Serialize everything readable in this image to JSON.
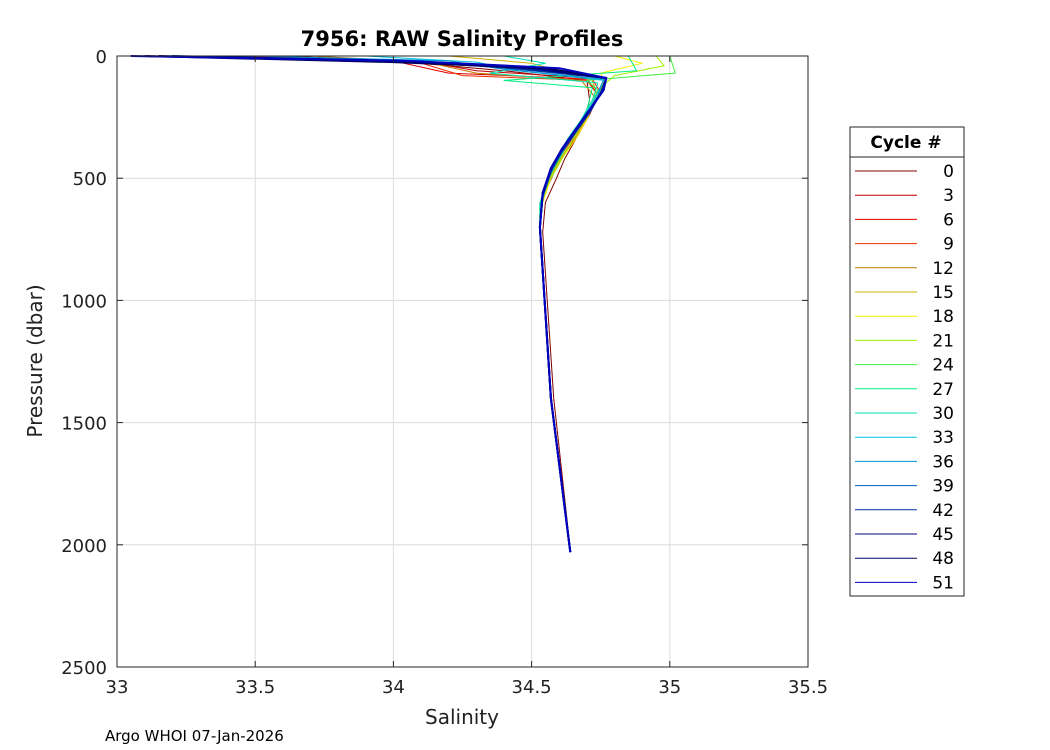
{
  "chart_data": {
    "type": "line",
    "title": "7956: RAW Salinity Profiles",
    "xlabel": "Salinity",
    "ylabel": "Pressure (dbar)",
    "xlim": [
      33,
      35.5
    ],
    "ylim": [
      0,
      2500
    ],
    "y_reversed": true,
    "xticks": [
      33,
      33.5,
      34,
      34.5,
      35,
      35.5
    ],
    "xtick_labels": [
      "33",
      "33.5",
      "34",
      "34.5",
      "35",
      "35.5"
    ],
    "yticks": [
      0,
      500,
      1000,
      1500,
      2000,
      2500
    ],
    "ytick_labels": [
      "0",
      "500",
      "1000",
      "1500",
      "2000",
      "2500"
    ],
    "grid": true,
    "legend_title": "Cycle #",
    "legend_position": "right",
    "series": [
      {
        "name": "0",
        "color": "#800000",
        "salinity": [
          33.62,
          34.05,
          34.4,
          34.7,
          34.71,
          34.69,
          34.66,
          34.62,
          34.59,
          34.55,
          34.54,
          34.58,
          34.64
        ],
        "pressure": [
          0,
          25,
          60,
          100,
          180,
          260,
          340,
          420,
          500,
          600,
          720,
          1400,
          2020
        ]
      },
      {
        "name": "3",
        "color": "#c00000",
        "salinity": [
          33.4,
          34.1,
          34.3,
          34.7,
          34.74,
          34.71,
          34.67,
          34.62,
          34.58,
          34.54,
          34.53,
          34.57,
          34.64
        ],
        "pressure": [
          0,
          20,
          60,
          90,
          160,
          240,
          320,
          400,
          480,
          580,
          700,
          1400,
          2030
        ]
      },
      {
        "name": "6",
        "color": "#e00000",
        "salinity": [
          33.3,
          34.02,
          34.2,
          34.72,
          34.75,
          34.71,
          34.66,
          34.61,
          34.57,
          34.54,
          34.53,
          34.57,
          34.64
        ],
        "pressure": [
          0,
          25,
          70,
          95,
          150,
          230,
          310,
          390,
          470,
          570,
          700,
          1400,
          2030
        ]
      },
      {
        "name": "9",
        "color": "#f03000",
        "salinity": [
          33.5,
          34.08,
          34.25,
          34.7,
          34.74,
          34.7,
          34.66,
          34.61,
          34.57,
          34.54,
          34.53,
          34.57,
          34.64
        ],
        "pressure": [
          0,
          22,
          80,
          100,
          160,
          240,
          320,
          400,
          480,
          580,
          700,
          1400,
          2030
        ]
      },
      {
        "name": "12",
        "color": "#c07800",
        "salinity": [
          33.7,
          34.12,
          34.3,
          34.68,
          34.73,
          34.7,
          34.66,
          34.61,
          34.57,
          34.54,
          34.53,
          34.57,
          34.64
        ],
        "pressure": [
          0,
          25,
          70,
          100,
          170,
          250,
          330,
          410,
          490,
          590,
          700,
          1400,
          2030
        ]
      },
      {
        "name": "15",
        "color": "#d0b000",
        "salinity": [
          34.2,
          34.5,
          34.6,
          34.72,
          34.74,
          34.7,
          34.66,
          34.61,
          34.57,
          34.54,
          34.53,
          34.57,
          34.64
        ],
        "pressure": [
          0,
          30,
          60,
          100,
          170,
          250,
          330,
          410,
          490,
          590,
          700,
          1400,
          2030
        ]
      },
      {
        "name": "18",
        "color": "#f0f000",
        "salinity": [
          34.8,
          34.9,
          34.75,
          34.76,
          34.73,
          34.7,
          34.66,
          34.61,
          34.57,
          34.54,
          34.53,
          34.57,
          34.64
        ],
        "pressure": [
          0,
          30,
          70,
          110,
          180,
          260,
          340,
          420,
          500,
          600,
          700,
          1400,
          2030
        ]
      },
      {
        "name": "21",
        "color": "#a0f000",
        "salinity": [
          34.95,
          34.98,
          34.8,
          34.76,
          34.72,
          34.68,
          34.64,
          34.6,
          34.56,
          34.53,
          34.53,
          34.57,
          34.64
        ],
        "pressure": [
          0,
          40,
          80,
          120,
          200,
          280,
          360,
          440,
          520,
          610,
          700,
          1400,
          2030
        ]
      },
      {
        "name": "24",
        "color": "#40f040",
        "salinity": [
          35.0,
          35.02,
          34.7,
          34.74,
          34.7,
          34.66,
          34.62,
          34.58,
          34.55,
          34.53,
          34.53,
          34.57,
          34.64
        ],
        "pressure": [
          0,
          70,
          100,
          140,
          220,
          300,
          380,
          460,
          530,
          620,
          700,
          1400,
          2030
        ]
      },
      {
        "name": "27",
        "color": "#00f080",
        "salinity": [
          34.85,
          34.88,
          34.4,
          34.72,
          34.7,
          34.66,
          34.62,
          34.58,
          34.55,
          34.53,
          34.53,
          34.57,
          34.64
        ],
        "pressure": [
          0,
          60,
          100,
          130,
          220,
          300,
          380,
          460,
          530,
          620,
          700,
          1400,
          2030
        ]
      },
      {
        "name": "30",
        "color": "#00e0b0",
        "salinity": [
          34.4,
          34.55,
          34.35,
          34.74,
          34.72,
          34.68,
          34.63,
          34.59,
          34.56,
          34.53,
          34.53,
          34.57,
          34.64
        ],
        "pressure": [
          0,
          30,
          70,
          110,
          180,
          260,
          340,
          420,
          500,
          600,
          700,
          1400,
          2030
        ]
      },
      {
        "name": "33",
        "color": "#00c0e0",
        "salinity": [
          33.9,
          34.3,
          34.45,
          34.76,
          34.73,
          34.69,
          34.65,
          34.6,
          34.56,
          34.54,
          34.53,
          34.57,
          34.64
        ],
        "pressure": [
          0,
          25,
          60,
          100,
          170,
          250,
          330,
          410,
          490,
          590,
          700,
          1400,
          2030
        ]
      },
      {
        "name": "36",
        "color": "#0090d0",
        "salinity": [
          33.5,
          34.2,
          34.4,
          34.76,
          34.74,
          34.7,
          34.65,
          34.6,
          34.57,
          34.54,
          34.53,
          34.57,
          34.64
        ],
        "pressure": [
          0,
          20,
          55,
          95,
          160,
          240,
          320,
          400,
          480,
          580,
          700,
          1400,
          2030
        ]
      },
      {
        "name": "39",
        "color": "#0060c0",
        "salinity": [
          33.3,
          34.1,
          34.4,
          34.77,
          34.75,
          34.71,
          34.66,
          34.61,
          34.57,
          34.54,
          34.53,
          34.57,
          34.64
        ],
        "pressure": [
          0,
          20,
          50,
          90,
          150,
          230,
          310,
          390,
          470,
          570,
          700,
          1400,
          2030
        ]
      },
      {
        "name": "42",
        "color": "#0030a0",
        "salinity": [
          33.2,
          34.05,
          34.45,
          34.77,
          34.75,
          34.71,
          34.66,
          34.61,
          34.57,
          34.54,
          34.53,
          34.57,
          34.64
        ],
        "pressure": [
          0,
          22,
          50,
          90,
          150,
          230,
          310,
          390,
          470,
          570,
          700,
          1400,
          2030
        ]
      },
      {
        "name": "45",
        "color": "#000080",
        "salinity": [
          33.15,
          34.02,
          34.5,
          34.77,
          34.76,
          34.71,
          34.66,
          34.61,
          34.57,
          34.54,
          34.53,
          34.57,
          34.64
        ],
        "pressure": [
          0,
          20,
          50,
          90,
          140,
          220,
          300,
          380,
          460,
          560,
          700,
          1400,
          2030
        ]
      },
      {
        "name": "48",
        "color": "#000060",
        "salinity": [
          33.1,
          34.0,
          34.55,
          34.77,
          34.76,
          34.71,
          34.66,
          34.61,
          34.57,
          34.54,
          34.53,
          34.57,
          34.64
        ],
        "pressure": [
          0,
          25,
          50,
          90,
          140,
          220,
          300,
          380,
          460,
          560,
          700,
          1400,
          2030
        ]
      },
      {
        "name": "51",
        "color": "#0000c0",
        "salinity": [
          33.05,
          34.05,
          34.6,
          34.77,
          34.76,
          34.71,
          34.66,
          34.61,
          34.57,
          34.54,
          34.53,
          34.57,
          34.64
        ],
        "pressure": [
          0,
          20,
          50,
          90,
          140,
          220,
          300,
          380,
          460,
          560,
          700,
          1400,
          2030
        ]
      }
    ]
  },
  "footer": {
    "credit": "Argo WHOI 07-Jan-2026"
  }
}
